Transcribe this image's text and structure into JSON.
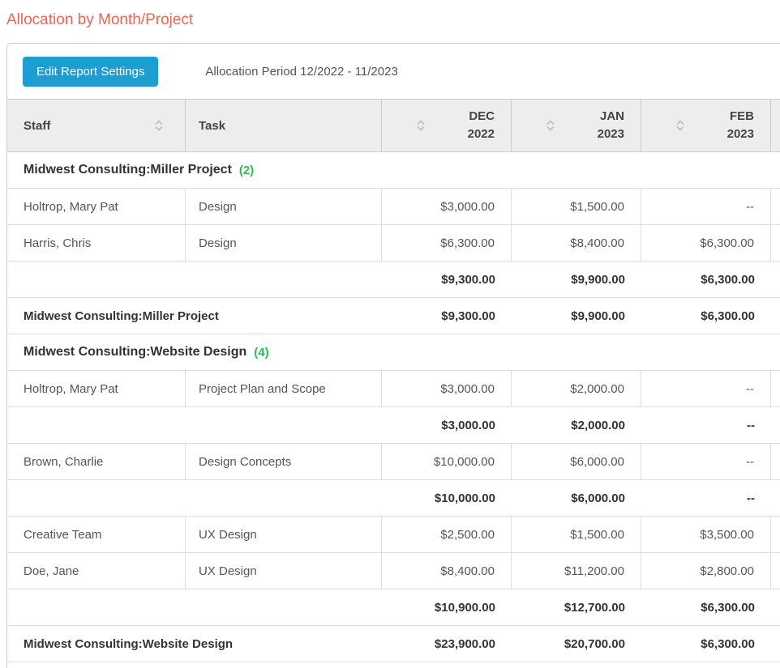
{
  "page": {
    "title": "Allocation by Month/Project"
  },
  "toolbar": {
    "edit_button_label": "Edit Report Settings",
    "period_label": "Allocation Period 12/2022 - 11/2023"
  },
  "colors": {
    "title_accent": "#ee6352",
    "button_accent": "#1c9ed3",
    "group_count_green": "#27c24c"
  },
  "table": {
    "columns": [
      {
        "label": "Staff"
      },
      {
        "label": "Task"
      },
      {
        "line1": "DEC",
        "line2": "2022"
      },
      {
        "line1": "JAN",
        "line2": "2023"
      },
      {
        "line1": "FEB",
        "line2": "2023"
      }
    ],
    "rows": [
      {
        "type": "group-header",
        "label": "Midwest Consulting:Miller Project",
        "count": "(2)"
      },
      {
        "type": "data",
        "staff": "Holtrop, Mary Pat",
        "task": "Design",
        "values": [
          "$3,000.00",
          "$1,500.00",
          "--"
        ]
      },
      {
        "type": "data",
        "staff": "Harris, Chris",
        "task": "Design",
        "values": [
          "$6,300.00",
          "$8,400.00",
          "$6,300.00"
        ]
      },
      {
        "type": "subtotal",
        "values": [
          "$9,300.00",
          "$9,900.00",
          "$6,300.00"
        ]
      },
      {
        "type": "group-total",
        "label": "Midwest Consulting:Miller Project",
        "values": [
          "$9,300.00",
          "$9,900.00",
          "$6,300.00"
        ]
      },
      {
        "type": "group-header",
        "label": "Midwest Consulting:Website Design",
        "count": "(4)"
      },
      {
        "type": "data",
        "staff": "Holtrop, Mary Pat",
        "task": "Project Plan and Scope",
        "values": [
          "$3,000.00",
          "$2,000.00",
          "--"
        ]
      },
      {
        "type": "subtotal",
        "values": [
          "$3,000.00",
          "$2,000.00",
          "--"
        ]
      },
      {
        "type": "data",
        "staff": "Brown, Charlie",
        "task": "Design Concepts",
        "values": [
          "$10,000.00",
          "$6,000.00",
          "--"
        ]
      },
      {
        "type": "subtotal",
        "values": [
          "$10,000.00",
          "$6,000.00",
          "--"
        ]
      },
      {
        "type": "data",
        "staff": "Creative Team",
        "task": "UX Design",
        "values": [
          "$2,500.00",
          "$1,500.00",
          "$3,500.00"
        ]
      },
      {
        "type": "data",
        "staff": "Doe, Jane",
        "task": "UX Design",
        "values": [
          "$8,400.00",
          "$11,200.00",
          "$2,800.00"
        ]
      },
      {
        "type": "subtotal",
        "values": [
          "$10,900.00",
          "$12,700.00",
          "$6,300.00"
        ]
      },
      {
        "type": "group-total",
        "label": "Midwest Consulting:Website Design",
        "values": [
          "$23,900.00",
          "$20,700.00",
          "$6,300.00"
        ]
      }
    ]
  }
}
